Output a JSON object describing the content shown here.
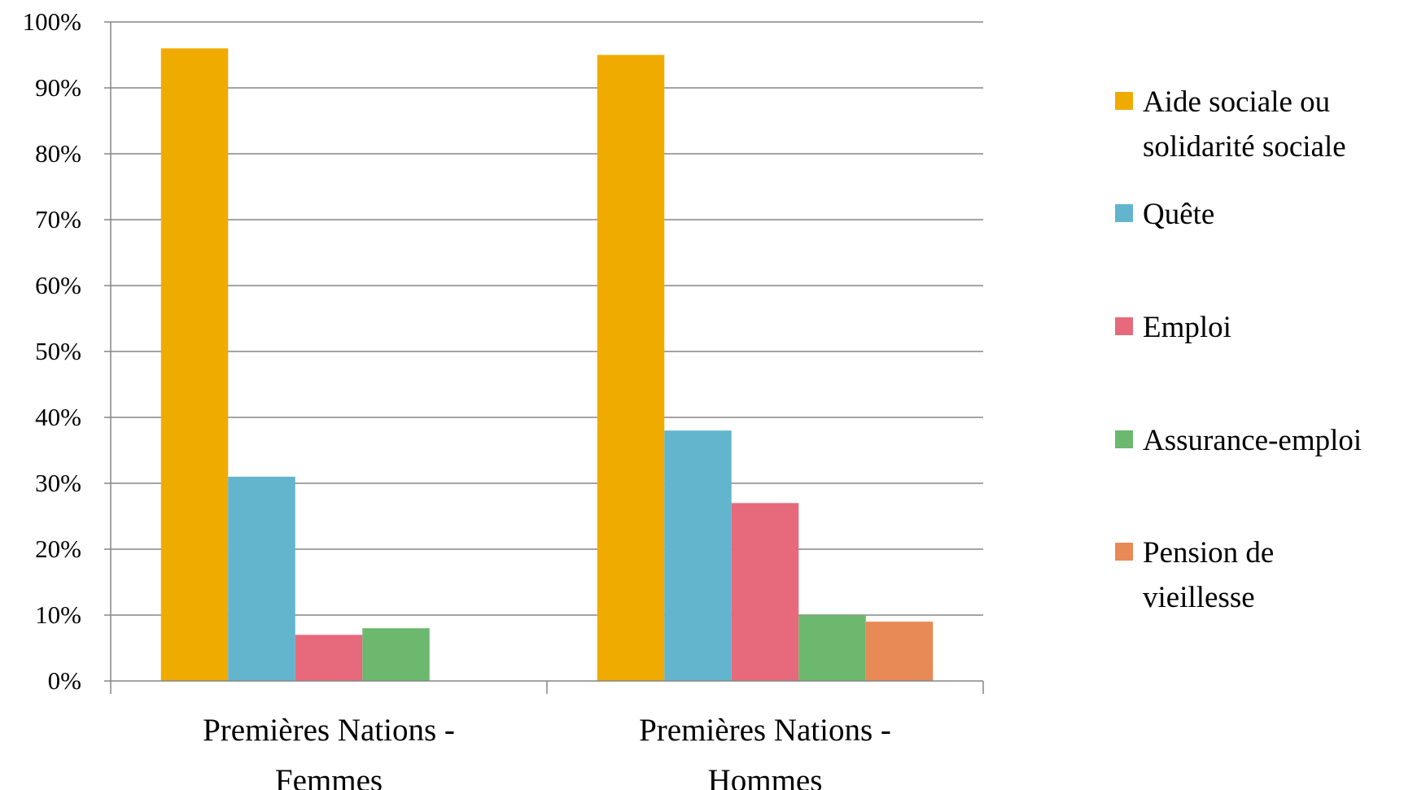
{
  "chart_data": {
    "type": "bar",
    "title": "",
    "xlabel": "",
    "ylabel": "",
    "categories": [
      [
        "Premières Nations -",
        "Femmes"
      ],
      [
        "Premières Nations -",
        "Hommes"
      ]
    ],
    "ylim": [
      0,
      100
    ],
    "yticks": [
      0,
      10,
      20,
      30,
      40,
      50,
      60,
      70,
      80,
      90,
      100
    ],
    "ytick_labels": [
      "0%",
      "10%",
      "20%",
      "30%",
      "40%",
      "50%",
      "60%",
      "70%",
      "80%",
      "90%",
      "100%"
    ],
    "grid": true,
    "legend_position": "right",
    "series": [
      {
        "name": "Aide sociale ou solidarité sociale",
        "legend_lines": [
          "Aide sociale ou",
          "solidarité sociale"
        ],
        "color": "#f0ab00",
        "values": [
          96,
          95
        ]
      },
      {
        "name": "Quête",
        "legend_lines": [
          "Quête"
        ],
        "color": "#62b5cd",
        "values": [
          31,
          38
        ]
      },
      {
        "name": "Emploi",
        "legend_lines": [
          "Emploi"
        ],
        "color": "#e66a7c",
        "values": [
          7,
          27
        ]
      },
      {
        "name": "Assurance-emploi",
        "legend_lines": [
          "Assurance-emploi"
        ],
        "color": "#6bb86e",
        "values": [
          8,
          10
        ]
      },
      {
        "name": "Pension de vieillesse",
        "legend_lines": [
          "Pension de",
          "vieillesse"
        ],
        "color": "#e88a55",
        "values": [
          0,
          9
        ]
      }
    ]
  }
}
